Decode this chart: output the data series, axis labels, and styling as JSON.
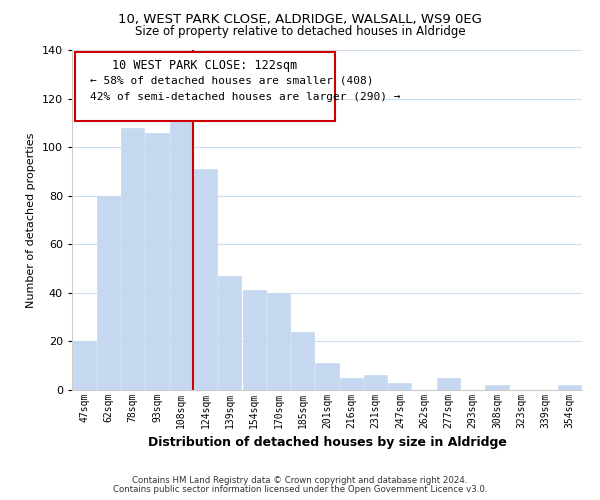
{
  "title": "10, WEST PARK CLOSE, ALDRIDGE, WALSALL, WS9 0EG",
  "subtitle": "Size of property relative to detached houses in Aldridge",
  "xlabel": "Distribution of detached houses by size in Aldridge",
  "ylabel": "Number of detached properties",
  "bar_labels": [
    "47sqm",
    "62sqm",
    "78sqm",
    "93sqm",
    "108sqm",
    "124sqm",
    "139sqm",
    "154sqm",
    "170sqm",
    "185sqm",
    "201sqm",
    "216sqm",
    "231sqm",
    "247sqm",
    "262sqm",
    "277sqm",
    "293sqm",
    "308sqm",
    "323sqm",
    "339sqm",
    "354sqm"
  ],
  "bar_values": [
    20,
    80,
    108,
    106,
    113,
    91,
    47,
    41,
    40,
    24,
    11,
    5,
    6,
    3,
    0,
    5,
    0,
    2,
    0,
    0,
    2
  ],
  "bar_color": "#c5d8f0",
  "bar_edge_color": "#c5d8f0",
  "vline_index": 4.5,
  "vline_color": "#cc0000",
  "annotation_title": "10 WEST PARK CLOSE: 122sqm",
  "annotation_line1": "← 58% of detached houses are smaller (408)",
  "annotation_line2": "42% of semi-detached houses are larger (290) →",
  "annotation_box_facecolor": "#ffffff",
  "annotation_box_edgecolor": "#cc0000",
  "ylim": [
    0,
    140
  ],
  "yticks": [
    0,
    20,
    40,
    60,
    80,
    100,
    120,
    140
  ],
  "footer1": "Contains HM Land Registry data © Crown copyright and database right 2024.",
  "footer2": "Contains public sector information licensed under the Open Government Licence v3.0.",
  "bg_color": "#ffffff",
  "grid_color": "#ccddee",
  "spine_color": "#cccccc"
}
